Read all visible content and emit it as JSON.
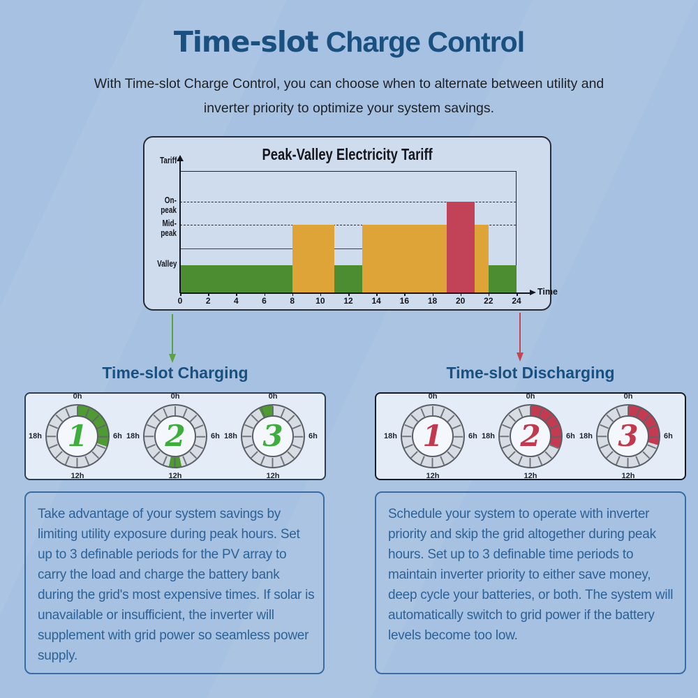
{
  "page": {
    "title_bold": "Time-slot",
    "title_rest": "Charge Control",
    "subtitle_line1": "With Time-slot Charge Control, you can choose when to alternate between utility and",
    "subtitle_line2": "inverter priority to optimize your system savings.",
    "colors": {
      "background": "#a6c1e1",
      "title_blue": "#1a5080",
      "body_text_blue": "#2d6296",
      "box_border_blue": "#3a6ca3",
      "green": "#4d8d31",
      "yellow": "#dfa437",
      "red": "#c24357",
      "arc_green": "#4f9a33",
      "arc_red": "#c23b50",
      "number_green": "#3ead3c",
      "number_red": "#c0394d",
      "arrow_green": "#5aa33c",
      "arrow_red": "#c64454"
    }
  },
  "chart_data": {
    "type": "bar",
    "title": "Peak-Valley Electricity Tariff",
    "xlabel": "Time",
    "ylabel": "Tariff",
    "x_range": [
      0,
      24
    ],
    "x_ticks": [
      0,
      2,
      4,
      6,
      8,
      10,
      12,
      14,
      16,
      18,
      20,
      22,
      24
    ],
    "y_levels": [
      "Valley",
      "Mid-peak",
      "On-peak"
    ],
    "dashed_levels": [
      "On-peak",
      "Mid-peak"
    ],
    "segments": [
      {
        "start_h": 0,
        "end_h": 8,
        "level": "Valley",
        "color": "green"
      },
      {
        "start_h": 8,
        "end_h": 11,
        "level": "Mid-peak",
        "color": "yellow"
      },
      {
        "start_h": 11,
        "end_h": 13,
        "level": "Valley",
        "color": "green"
      },
      {
        "start_h": 13,
        "end_h": 19,
        "level": "Mid-peak",
        "color": "yellow"
      },
      {
        "start_h": 19,
        "end_h": 21,
        "level": "On-peak",
        "color": "red"
      },
      {
        "start_h": 21,
        "end_h": 22,
        "level": "Mid-peak",
        "color": "yellow"
      },
      {
        "start_h": 22,
        "end_h": 24,
        "level": "Valley",
        "color": "green"
      }
    ],
    "reference_line": {
      "from_h": 0,
      "to_h": 13,
      "note": "unlabeled flat level between Valley and Mid-peak"
    }
  },
  "clock_labels": {
    "top": "0h",
    "right": "6h",
    "bottom": "12h",
    "left": "18h"
  },
  "charging": {
    "heading": "Time-slot Charging",
    "clocks": [
      {
        "number": "1",
        "arc_start_h": 0,
        "arc_end_h": 7.3
      },
      {
        "number": "2",
        "arc_start_h": 11.2,
        "arc_end_h": 12.8
      },
      {
        "number": "3",
        "arc_start_h": 22.2,
        "arc_end_h": 24
      }
    ],
    "description": "Take advantage of your system savings by limiting utility exposure during peak hours. Set up to 3 definable periods for the PV array to carry the load and charge the battery bank during the grid's most expensive times. If solar is unavailable or insufficient, the inverter will supplement with grid power so seamless power supply."
  },
  "discharging": {
    "heading": "Time-slot Discharging",
    "clocks": [
      {
        "number": "1",
        "arc_start_h": null,
        "arc_end_h": null
      },
      {
        "number": "2",
        "arc_start_h": 0,
        "arc_end_h": 7.5
      },
      {
        "number": "3",
        "arc_start_h": 0,
        "arc_end_h": 7.1
      }
    ],
    "description": "Schedule your system to operate with inverter priority and skip the grid altogether during peak hours. Set up to 3 definable time periods to maintain inverter priority to either save money, deep cycle your batteries, or both. The system will automatically switch to grid power if the battery levels become too low."
  }
}
